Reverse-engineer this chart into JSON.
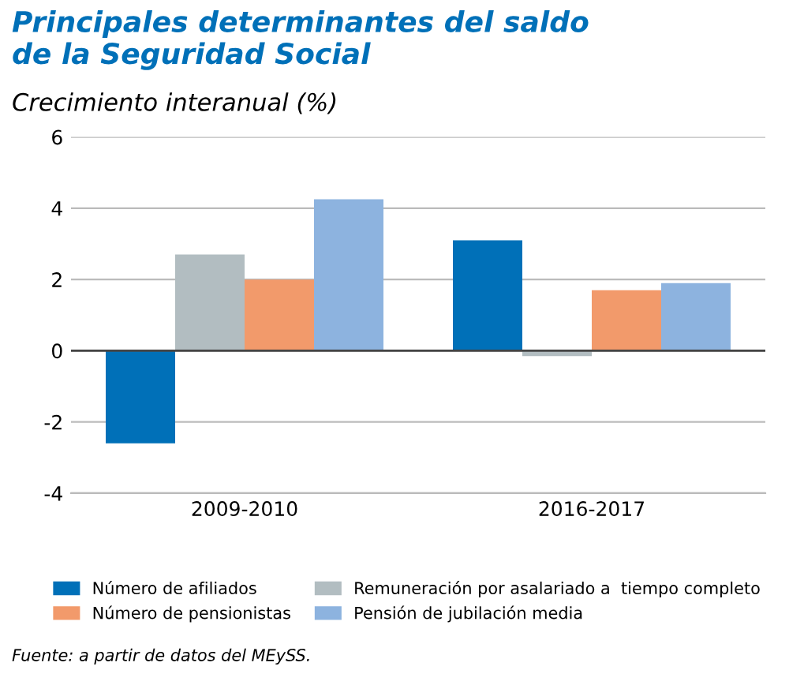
{
  "chart_data": {
    "type": "bar",
    "title": "Principales determinantes del saldo\nde la Seguridad Social",
    "subtitle": "Crecimiento interanual (%)",
    "categories": [
      "2009-2010",
      "2016-2017"
    ],
    "series": [
      {
        "name": "Número de afiliados",
        "color": "#0070b8",
        "values": [
          -2.6,
          3.1
        ]
      },
      {
        "name": "Remuneración por asalariado a  tiempo completo",
        "color": "#b2bdc1",
        "values": [
          2.7,
          -0.15
        ]
      },
      {
        "name": "Número de pensionistas",
        "color": "#f29a6b",
        "values": [
          2.0,
          1.7
        ]
      },
      {
        "name": "Pensión de jubilación media",
        "color": "#8db3df",
        "values": [
          4.25,
          1.9
        ]
      }
    ],
    "ylim": [
      -4,
      6
    ],
    "yticks": [
      -4,
      -2,
      0,
      2,
      4,
      6
    ],
    "grid": "y",
    "legend": "bottom",
    "annotations": [
      "Fuente: a partir de datos del MEySS."
    ]
  }
}
